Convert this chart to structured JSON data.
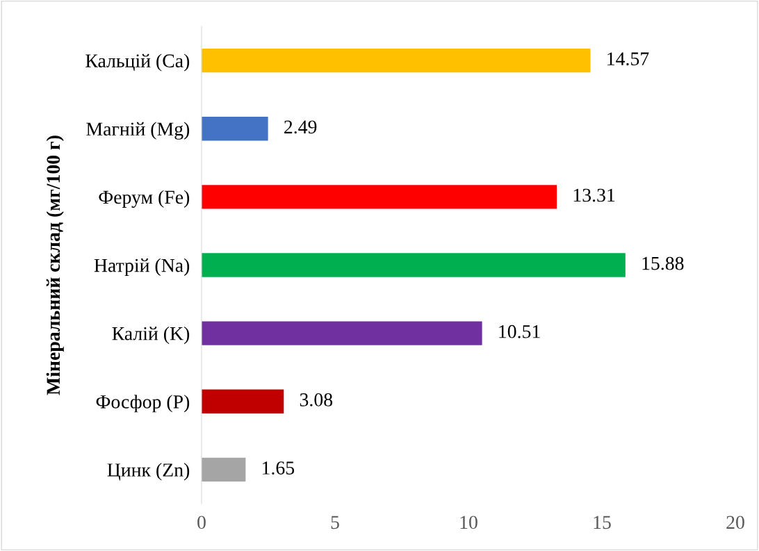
{
  "chart_data": {
    "type": "bar",
    "orientation": "horizontal",
    "ylabel": "Мінеральний склад (мг/100 г)",
    "categories": [
      "Кальцій (Ca)",
      "Магній (Mg)",
      "Ферум (Fe)",
      "Натрій (Na)",
      "Калій (K)",
      "Фосфор (P)",
      "Цинк (Zn)"
    ],
    "values": [
      14.57,
      2.49,
      13.31,
      15.88,
      10.51,
      3.08,
      1.65
    ],
    "colors": [
      "#ffc000",
      "#4472c4",
      "#ff0000",
      "#00b050",
      "#7030a0",
      "#c00000",
      "#a5a5a5"
    ],
    "xlim": [
      0,
      20
    ],
    "xticks": [
      0,
      5,
      10,
      15,
      20
    ],
    "data_labels": true,
    "grid": false,
    "legend": false
  }
}
